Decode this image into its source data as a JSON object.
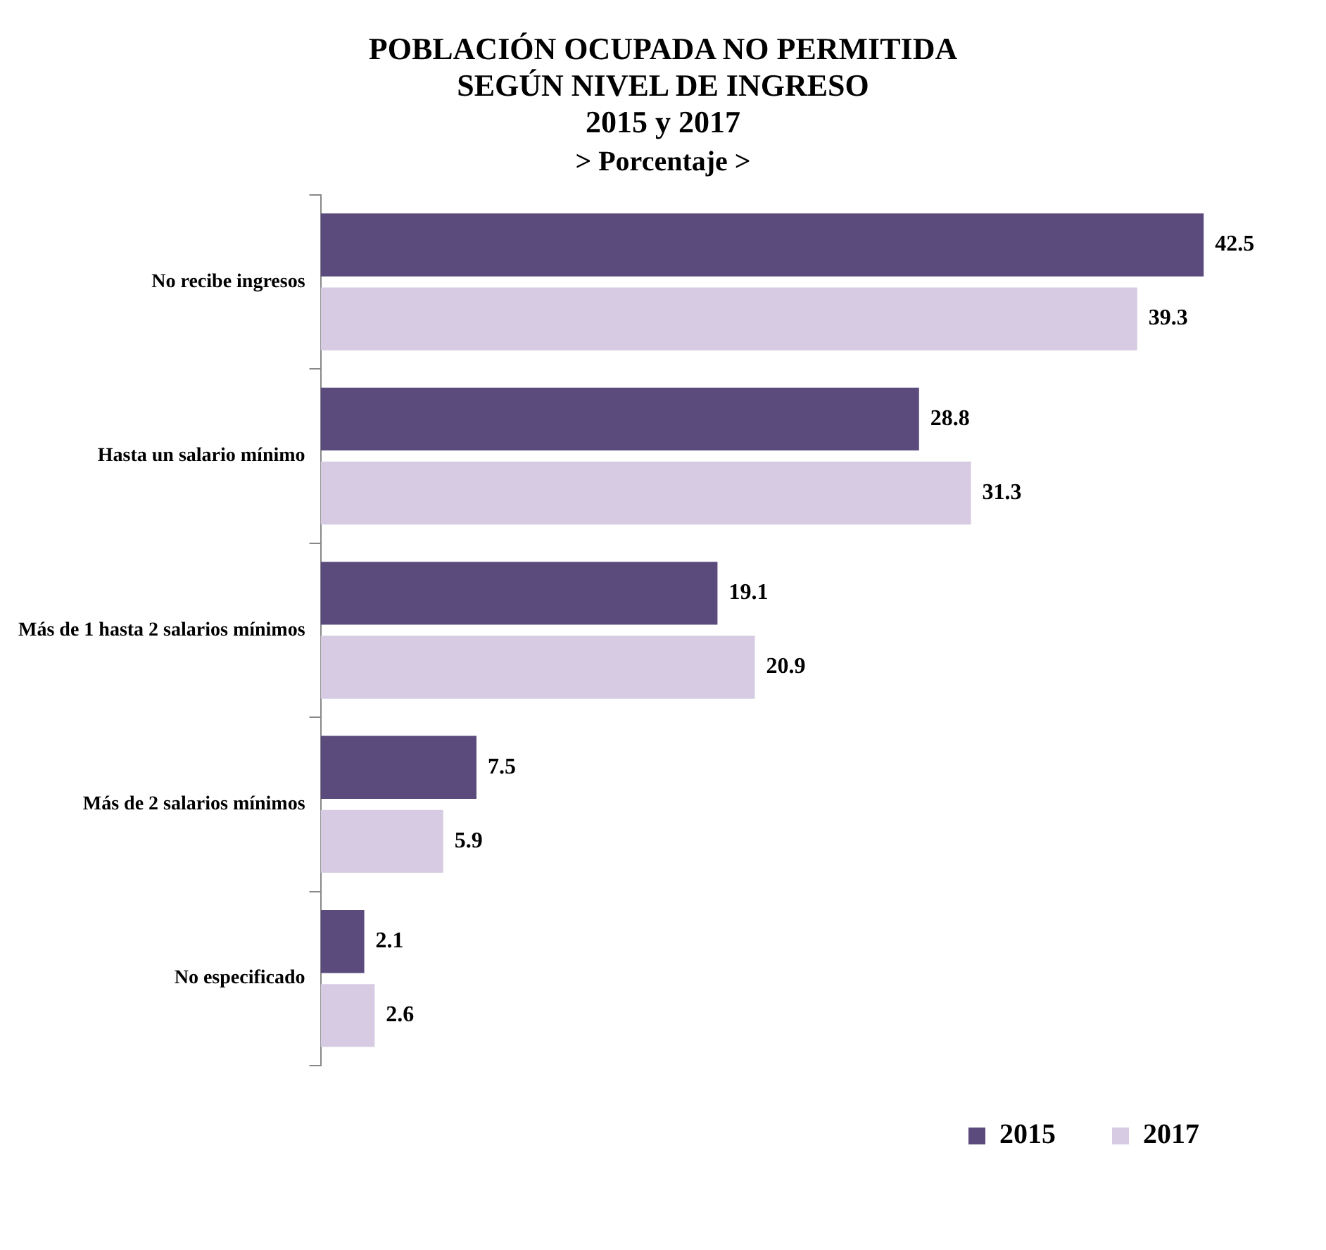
{
  "chart_data": {
    "type": "bar",
    "orientation": "horizontal",
    "title": "POBLACIÓN OCUPADA NO PERMITIDA\nSEGÚN NIVEL DE INGRESO\n2015 y 2017",
    "subtitle": "> Porcentaje >",
    "categories": [
      "No recibe ingresos",
      "Hasta un salario mínimo",
      "Más de 1 hasta 2 salarios mínimos",
      "Más de 2 salarios mínimos",
      "No especificado"
    ],
    "series": [
      {
        "name": "2015",
        "color": "#5b4a7c",
        "values": [
          42.5,
          28.8,
          19.1,
          7.5,
          2.1
        ]
      },
      {
        "name": "2017",
        "color": "#d6cbe3",
        "values": [
          39.3,
          31.3,
          20.9,
          5.9,
          2.6
        ]
      }
    ],
    "data_labels": true,
    "legend": "bottom right",
    "grid": false,
    "tick_labels": "y"
  }
}
